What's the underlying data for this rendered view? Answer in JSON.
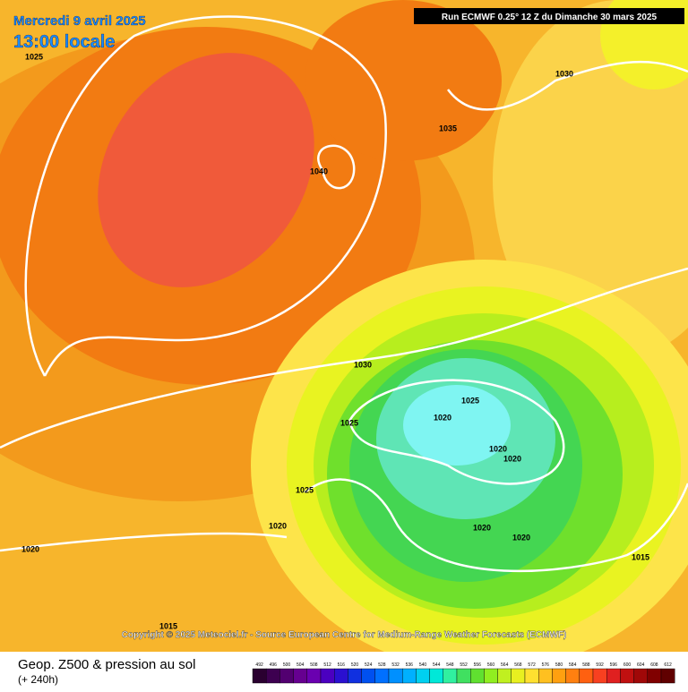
{
  "header": {
    "date": "Mercredi 9 avril 2025",
    "time": "13:00 locale",
    "run": "Run ECMWF 0.25° 12 Z du Dimanche 30 mars 2025"
  },
  "copyright": "Copyright © 2025 Meteociel.fr - Source European Centre for Medium-Range Weather Forecasts (ECMWF)",
  "footer": {
    "title": "Geop. Z500 & pression au sol",
    "lead": "(+ 240h)"
  },
  "isobar_labels": [
    1025,
    1030,
    1035,
    1040,
    1030,
    1025,
    1020,
    1025,
    1020,
    1020,
    1025,
    1020,
    1020,
    1020,
    1020,
    1015,
    1015
  ],
  "legend": [
    492,
    496,
    500,
    504,
    508,
    512,
    516,
    520,
    524,
    528,
    532,
    536,
    540,
    544,
    548,
    552,
    556,
    560,
    564,
    568,
    572,
    576,
    580,
    584,
    588,
    592,
    596,
    600,
    604,
    608,
    612
  ]
}
